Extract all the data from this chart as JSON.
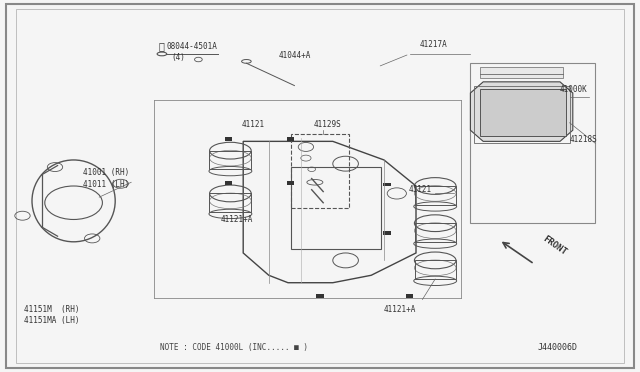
{
  "bg_color": "#f5f5f5",
  "line_color": "#555555",
  "fig_width": 6.4,
  "fig_height": 3.72,
  "dpi": 100,
  "diagram_id": "J440006D",
  "note_text": "NOTE : CODE 41000L (INC..... ■ )",
  "front_label": "FRONT",
  "border_color": "#888888",
  "inner_border_color": "#aaaaaa"
}
